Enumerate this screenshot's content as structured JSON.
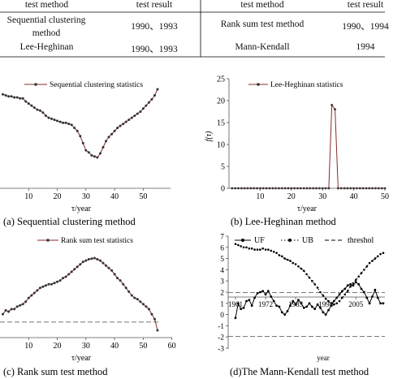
{
  "table": {
    "left": {
      "header": [
        "test method",
        "test result"
      ],
      "rows": [
        [
          "Sequential clustering method",
          "1990、1993"
        ],
        [
          "Lee-Heghinan",
          "1990、1993"
        ]
      ]
    },
    "right": {
      "header": [
        "test method",
        "test result"
      ],
      "rows": [
        [
          "Rank sum test method",
          "1990、1994"
        ],
        [
          "Mann-Kendall",
          "1994"
        ]
      ]
    }
  },
  "chart_data": [
    {
      "type": "line",
      "caption": "(a) Sequential clustering method",
      "xlabel": "τ/year",
      "ylabel": "",
      "xlim": [
        0,
        60
      ],
      "xticks": [
        10,
        20,
        30,
        40,
        50
      ],
      "series": [
        {
          "name": "Sequential clustering statistics",
          "x": [
            1,
            2,
            3,
            4,
            5,
            6,
            7,
            8,
            9,
            10,
            11,
            12,
            13,
            14,
            15,
            16,
            17,
            18,
            19,
            20,
            21,
            22,
            23,
            24,
            25,
            26,
            27,
            28,
            29,
            30,
            31,
            32,
            33,
            34,
            35,
            36,
            37,
            38,
            39,
            40,
            41,
            42,
            43,
            44,
            45,
            46,
            47,
            48,
            49,
            50,
            51,
            52,
            53,
            54,
            55
          ],
          "y": [
            0.88,
            0.87,
            0.86,
            0.86,
            0.85,
            0.85,
            0.84,
            0.84,
            0.81,
            0.79,
            0.77,
            0.75,
            0.73,
            0.72,
            0.7,
            0.67,
            0.65,
            0.64,
            0.63,
            0.62,
            0.61,
            0.6,
            0.6,
            0.59,
            0.58,
            0.55,
            0.52,
            0.47,
            0.4,
            0.33,
            0.31,
            0.28,
            0.27,
            0.26,
            0.3,
            0.36,
            0.42,
            0.46,
            0.49,
            0.52,
            0.55,
            0.57,
            0.59,
            0.61,
            0.63,
            0.65,
            0.67,
            0.69,
            0.71,
            0.74,
            0.77,
            0.8,
            0.83,
            0.87,
            0.93
          ]
        }
      ]
    },
    {
      "type": "line",
      "caption": "(b) Lee-Heghinan method",
      "xlabel": "τ/year",
      "ylabel": "f(τ)",
      "xlim": [
        0,
        50
      ],
      "ylim": [
        0,
        25
      ],
      "xticks": [
        10,
        20,
        30,
        40,
        50
      ],
      "yticks": [
        0,
        5,
        10,
        15,
        20,
        25
      ],
      "series": [
        {
          "name": "Lee-Heghinan statistics",
          "x": [
            1,
            2,
            3,
            4,
            5,
            6,
            7,
            8,
            9,
            10,
            11,
            12,
            13,
            14,
            15,
            16,
            17,
            18,
            19,
            20,
            21,
            22,
            23,
            24,
            25,
            26,
            27,
            28,
            29,
            30,
            31,
            32,
            33,
            34,
            35,
            36,
            37,
            38,
            39,
            40,
            41,
            42,
            43,
            44,
            45,
            46,
            47,
            48,
            49,
            50
          ],
          "y": [
            0,
            0,
            0,
            0,
            0,
            0,
            0,
            0,
            0,
            0,
            0,
            0,
            0,
            0,
            0,
            0,
            0,
            0,
            0,
            0,
            0,
            0,
            0,
            0,
            0,
            0,
            0,
            0,
            0,
            0,
            0,
            0,
            19,
            18,
            0,
            0,
            0,
            0,
            0,
            0,
            0,
            0,
            0,
            0,
            0,
            0,
            0,
            0,
            0,
            0
          ]
        }
      ]
    },
    {
      "type": "line",
      "caption": "(c) Rank sum test method",
      "xlabel": "τ/year",
      "ylabel": "",
      "xlim": [
        0,
        60
      ],
      "xticks": [
        10,
        20,
        30,
        40,
        50,
        60
      ],
      "threshold": 1.96,
      "series": [
        {
          "name": "Rank sum test statistics",
          "x": [
            1,
            2,
            3,
            4,
            5,
            6,
            7,
            8,
            9,
            10,
            11,
            12,
            13,
            14,
            15,
            16,
            17,
            18,
            19,
            20,
            21,
            22,
            23,
            24,
            25,
            26,
            27,
            28,
            29,
            30,
            31,
            32,
            33,
            34,
            35,
            36,
            37,
            38,
            39,
            40,
            41,
            42,
            43,
            44,
            45,
            46,
            47,
            48,
            49,
            50,
            51,
            52,
            53,
            54,
            55
          ],
          "y": [
            2.6,
            2.9,
            2.8,
            3.0,
            3.0,
            3.2,
            3.3,
            3.4,
            3.6,
            3.9,
            4.1,
            4.3,
            4.5,
            4.7,
            4.8,
            4.9,
            5.0,
            5.0,
            5.1,
            5.2,
            5.3,
            5.5,
            5.6,
            5.8,
            6.0,
            6.2,
            6.4,
            6.6,
            6.8,
            6.9,
            7.0,
            7.05,
            7.1,
            7.0,
            6.9,
            6.7,
            6.5,
            6.3,
            6.1,
            5.8,
            5.5,
            5.3,
            5.0,
            4.7,
            4.4,
            4.1,
            3.9,
            3.8,
            3.6,
            3.4,
            3.2,
            3.0,
            2.6,
            2.2,
            1.3
          ]
        }
      ]
    },
    {
      "type": "line",
      "caption": "(d)The Mann-Kendall test method",
      "xlabel": "year",
      "ylabel": "",
      "xticks": [
        1961,
        1972,
        1983,
        1994,
        2005
      ],
      "xlim": [
        1961,
        2015
      ],
      "ylim": [
        -3,
        7
      ],
      "yticks": [
        -3,
        -2,
        -1,
        0,
        1,
        2,
        3,
        4,
        5,
        6,
        7
      ],
      "series": [
        {
          "name": "UF",
          "x": [
            1961,
            1962,
            1963,
            1964,
            1965,
            1966,
            1967,
            1968,
            1969,
            1970,
            1971,
            1972,
            1973,
            1974,
            1975,
            1976,
            1977,
            1978,
            1979,
            1980,
            1981,
            1982,
            1983,
            1984,
            1985,
            1986,
            1987,
            1988,
            1989,
            1990,
            1991,
            1992,
            1993,
            1994,
            1995,
            1996,
            1997,
            1998,
            1999,
            2000,
            2001,
            2002,
            2003,
            2004,
            2005,
            2006,
            2007,
            2008,
            2009,
            2010,
            2011,
            2012,
            2013,
            2014,
            2015
          ],
          "y": [
            -0.3,
            1.0,
            0.5,
            0.6,
            1.2,
            1.3,
            0.8,
            1.5,
            1.9,
            2.0,
            2.1,
            1.8,
            2.1,
            1.6,
            1.2,
            0.8,
            0.7,
            0.2,
            0.0,
            0.3,
            0.8,
            1.2,
            0.9,
            1.3,
            1.0,
            0.6,
            0.7,
            1.0,
            0.7,
            0.5,
            0.9,
            0.6,
            0.2,
            0.0,
            0.4,
            0.8,
            1.2,
            1.5,
            1.8,
            2.1,
            2.3,
            2.6,
            2.7,
            2.6,
            2.9,
            2.7,
            2.3,
            2.0,
            1.5,
            1.0,
            1.6,
            2.2,
            1.5,
            1.0,
            1.0
          ]
        },
        {
          "name": "UB",
          "x": [
            1961,
            1962,
            1963,
            1964,
            1965,
            1966,
            1967,
            1968,
            1969,
            1970,
            1971,
            1972,
            1973,
            1974,
            1975,
            1976,
            1977,
            1978,
            1979,
            1980,
            1981,
            1982,
            1983,
            1984,
            1985,
            1986,
            1987,
            1988,
            1989,
            1990,
            1991,
            1992,
            1993,
            1994,
            1995,
            1996,
            1997,
            1998,
            1999,
            2000,
            2001,
            2002,
            2003,
            2004,
            2005,
            2006,
            2007,
            2008,
            2009,
            2010,
            2011,
            2012,
            2013,
            2014,
            2015
          ],
          "y": [
            6.3,
            6.2,
            6.1,
            6.0,
            6.0,
            5.9,
            5.9,
            5.8,
            5.8,
            5.8,
            5.9,
            5.8,
            5.8,
            5.7,
            5.6,
            5.5,
            5.3,
            5.2,
            5.0,
            4.9,
            4.8,
            4.6,
            4.5,
            4.3,
            4.1,
            3.9,
            3.6,
            3.3,
            3.0,
            2.7,
            2.4,
            2.0,
            1.7,
            1.4,
            1.2,
            1.0,
            0.9,
            1.0,
            1.2,
            1.5,
            1.8,
            2.1,
            2.5,
            2.8,
            3.1,
            3.4,
            3.7,
            4.0,
            4.3,
            4.6,
            4.8,
            5.0,
            5.2,
            5.4,
            5.5
          ]
        },
        {
          "name": "threshol",
          "values": [
            1.96,
            -1.96
          ]
        }
      ]
    }
  ]
}
